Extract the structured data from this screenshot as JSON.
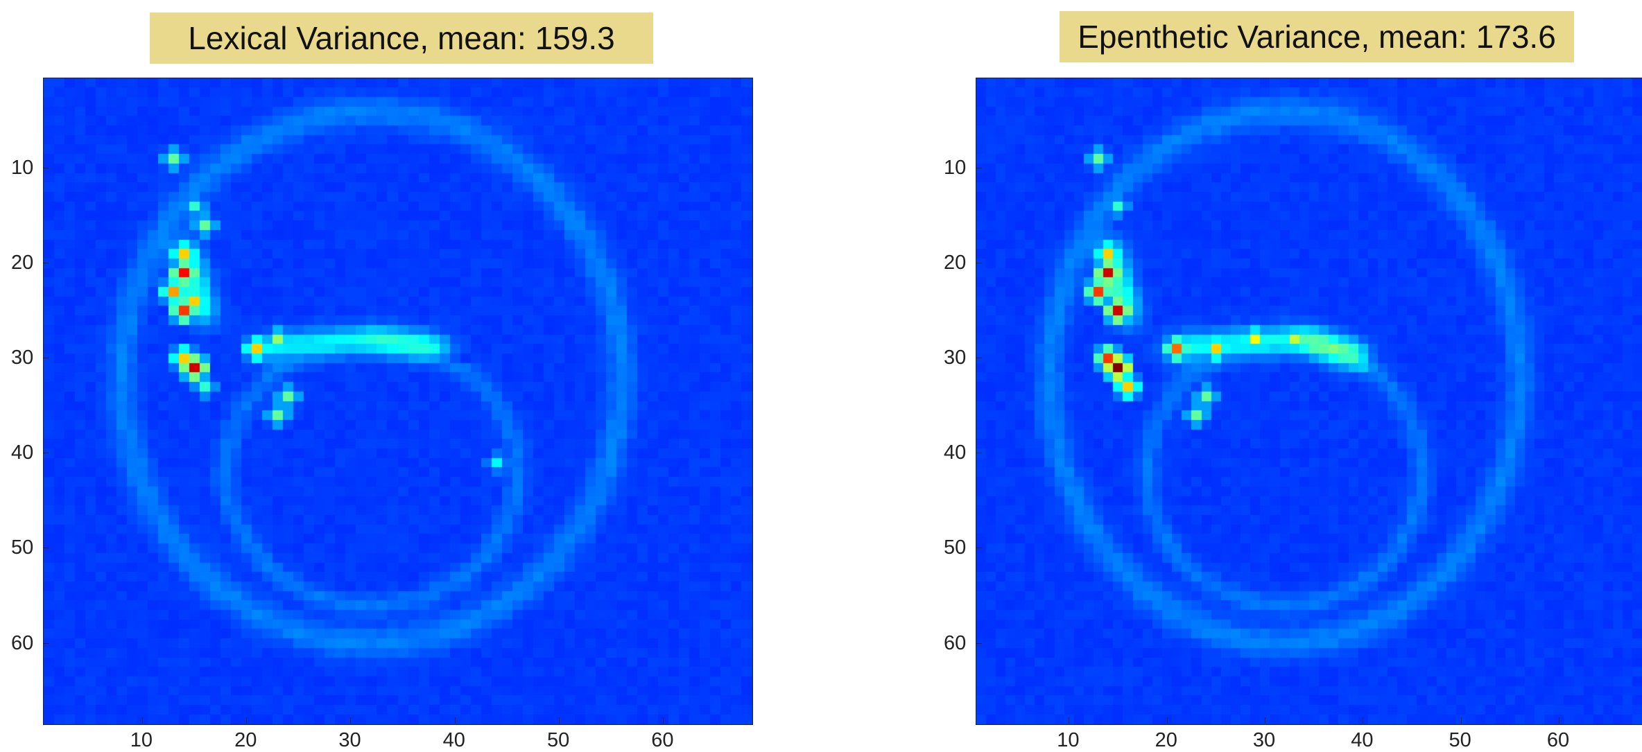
{
  "chart_data": [
    {
      "type": "heatmap",
      "title": "Lexical Variance, mean: 159.3",
      "xlabel": "",
      "ylabel": "",
      "xlim": [
        0.5,
        68.5
      ],
      "ylim": [
        0.5,
        68.5
      ],
      "x_ticks": [
        10,
        20,
        30,
        40,
        50,
        60
      ],
      "y_ticks": [
        10,
        20,
        30,
        40,
        50,
        60
      ],
      "colormap": "jet",
      "hotspots": [
        {
          "x": 13,
          "y": 9,
          "v": 0.35
        },
        {
          "x": 15,
          "y": 14,
          "v": 0.3
        },
        {
          "x": 16,
          "y": 16,
          "v": 0.35
        },
        {
          "x": 14,
          "y": 19,
          "v": 0.55
        },
        {
          "x": 14,
          "y": 21,
          "v": 0.75
        },
        {
          "x": 13,
          "y": 23,
          "v": 0.6
        },
        {
          "x": 15,
          "y": 24,
          "v": 0.55
        },
        {
          "x": 14,
          "y": 25,
          "v": 0.7
        },
        {
          "x": 14,
          "y": 30,
          "v": 0.55
        },
        {
          "x": 15,
          "y": 31,
          "v": 0.8
        },
        {
          "x": 16,
          "y": 33,
          "v": 0.3
        },
        {
          "x": 21,
          "y": 29,
          "v": 0.55
        },
        {
          "x": 23,
          "y": 28,
          "v": 0.4
        },
        {
          "x": 24,
          "y": 34,
          "v": 0.35
        },
        {
          "x": 23,
          "y": 36,
          "v": 0.35
        },
        {
          "x": 44,
          "y": 41,
          "v": 0.25
        }
      ],
      "structures": [
        {
          "x0": 21,
          "y0": 29,
          "x1": 32,
          "y1": 28,
          "v": 0.32
        },
        {
          "x0": 32,
          "y0": 28,
          "x1": 39,
          "y1": 29,
          "v": 0.26
        },
        {
          "x0": 14,
          "y0": 18,
          "x1": 16,
          "y1": 26,
          "v": 0.28
        }
      ]
    },
    {
      "type": "heatmap",
      "title": "Epenthetic Variance, mean: 173.6",
      "xlabel": "",
      "ylabel": "",
      "xlim": [
        0.5,
        68.5
      ],
      "ylim": [
        0.5,
        68.5
      ],
      "x_ticks": [
        10,
        20,
        30,
        40,
        50,
        60
      ],
      "y_ticks": [
        10,
        20,
        30,
        40,
        50,
        60
      ],
      "colormap": "jet",
      "hotspots": [
        {
          "x": 13,
          "y": 9,
          "v": 0.35
        },
        {
          "x": 15,
          "y": 14,
          "v": 0.3
        },
        {
          "x": 14,
          "y": 19,
          "v": 0.55
        },
        {
          "x": 14,
          "y": 21,
          "v": 0.8
        },
        {
          "x": 13,
          "y": 23,
          "v": 0.7
        },
        {
          "x": 15,
          "y": 25,
          "v": 0.8
        },
        {
          "x": 14,
          "y": 30,
          "v": 0.7
        },
        {
          "x": 15,
          "y": 31,
          "v": 0.95
        },
        {
          "x": 16,
          "y": 33,
          "v": 0.55
        },
        {
          "x": 21,
          "y": 29,
          "v": 0.65
        },
        {
          "x": 25,
          "y": 29,
          "v": 0.55
        },
        {
          "x": 29,
          "y": 28,
          "v": 0.5
        },
        {
          "x": 33,
          "y": 28,
          "v": 0.45
        },
        {
          "x": 24,
          "y": 34,
          "v": 0.35
        },
        {
          "x": 23,
          "y": 36,
          "v": 0.35
        }
      ],
      "structures": [
        {
          "x0": 20,
          "y0": 29,
          "x1": 34,
          "y1": 28,
          "v": 0.45
        },
        {
          "x0": 34,
          "y0": 28,
          "x1": 40,
          "y1": 30,
          "v": 0.3
        },
        {
          "x0": 14,
          "y0": 18,
          "x1": 16,
          "y1": 26,
          "v": 0.32
        }
      ]
    }
  ]
}
